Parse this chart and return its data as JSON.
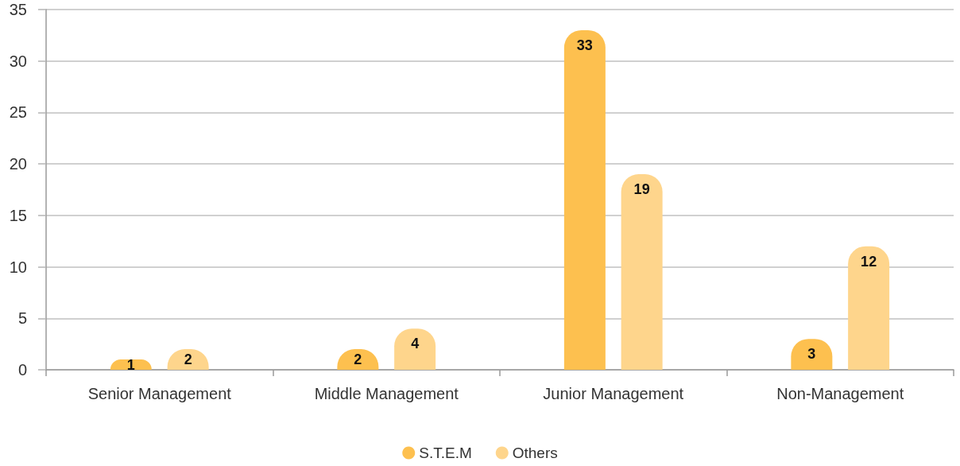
{
  "chart_data": {
    "type": "bar",
    "categories": [
      "Senior Management",
      "Middle Management",
      "Junior Management",
      "Non-Management"
    ],
    "series": [
      {
        "name": "S.T.E.M",
        "color": "#fdc04f",
        "values": [
          1,
          2,
          33,
          3
        ]
      },
      {
        "name": "Others",
        "color": "#fed58c",
        "values": [
          2,
          4,
          19,
          12
        ]
      }
    ],
    "ylim": [
      0,
      35
    ],
    "yticks": [
      0,
      5,
      10,
      15,
      20,
      25,
      30,
      35
    ],
    "grid": "y",
    "legend": "bottom",
    "data_labels": true
  }
}
